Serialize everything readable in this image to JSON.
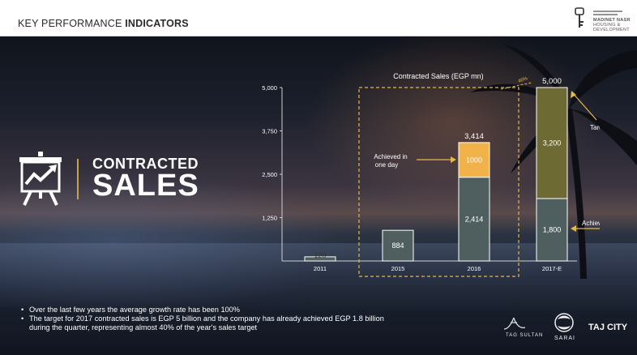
{
  "header": {
    "title_regular": "KEY PERFORMANCE",
    "title_bold": "INDICATORS",
    "logo_text_line1": "MADINET NASR",
    "logo_text_line2": "HOUSING & DEVELOPMENT"
  },
  "section": {
    "line1": "CONTRACTED",
    "line2": "SALES",
    "icon": "presentation-chart-icon"
  },
  "chart_data": {
    "type": "bar",
    "title": "Contracted Sales (EGP mn)",
    "categories": [
      "2011",
      "2015",
      "2016",
      "2017-E"
    ],
    "ylim": [
      0,
      5000
    ],
    "yticks": [
      "5,000",
      "3,750",
      "2,500",
      "1,250"
    ],
    "series": [
      {
        "name": "Achieved",
        "values": [
          120,
          884,
          2414,
          1800
        ]
      },
      {
        "name": "Target",
        "values": [
          0,
          0,
          0,
          3200
        ]
      },
      {
        "name": "Achieved in one day",
        "values": [
          0,
          0,
          1000,
          0
        ]
      }
    ],
    "segment_labels": {
      "2011": [
        "120"
      ],
      "2015": [
        "884"
      ],
      "2016": [
        "2,414",
        "1000"
      ],
      "2017-E": [
        "1,800",
        "3,200"
      ]
    },
    "totals": {
      "2016": "3,414",
      "2017-E": "5,000"
    },
    "annotations": {
      "achieved_in_one_day": "Achieved in one day",
      "target": "Target",
      "achieved": "Achieved",
      "growth": "46%"
    },
    "colors": {
      "base": "#4f5f5f",
      "one_day": "#f2b24a",
      "target": "#6e6a33",
      "highlight_box": "#e6b84a"
    }
  },
  "bullets": [
    "Over the last few years the average growth rate has been 100%",
    "The target for 2017 contracted sales is EGP 5 billion and the company has already achieved EGP 1.8 billion during the quarter, representing almost 40% of the year's sales target"
  ],
  "brands": {
    "tag_sultan": "TAG SULTAN",
    "sarai": "SARAI",
    "taj_city": "TAJ CITY"
  }
}
